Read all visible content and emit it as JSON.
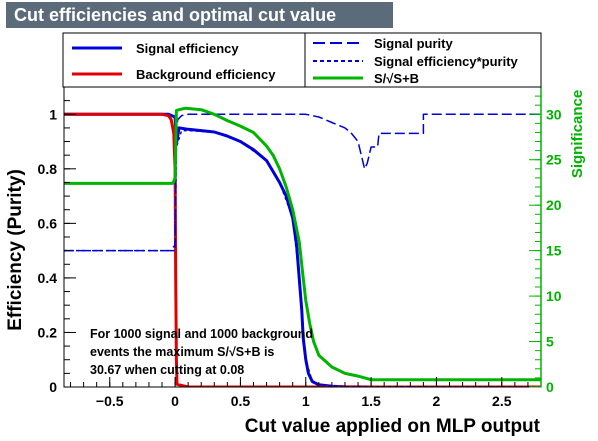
{
  "title": "Cut efficiencies and optimal cut value",
  "chart_data": {
    "type": "line",
    "xlabel": "Cut value applied on MLP output",
    "ylabel": "Efficiency (Purity)",
    "y2label": "Significance",
    "xlim": [
      -0.85,
      2.8
    ],
    "ylim": [
      0,
      1.1
    ],
    "y2lim": [
      0,
      33
    ],
    "xticks": [
      "−0.5",
      "0",
      "0.5",
      "1",
      "1.5",
      "2",
      "2.5"
    ],
    "xtick_values": [
      -0.5,
      0,
      0.5,
      1,
      1.5,
      2,
      2.5
    ],
    "yticks": [
      "0",
      "0.2",
      "0.4",
      "0.6",
      "0.8",
      "1"
    ],
    "ytick_values": [
      0,
      0.2,
      0.4,
      0.6,
      0.8,
      1
    ],
    "y2ticks": [
      "0",
      "5",
      "10",
      "15",
      "20",
      "25",
      "30"
    ],
    "y2tick_values": [
      0,
      5,
      10,
      15,
      20,
      25,
      30
    ],
    "legend": {
      "signal_eff": "Signal efficiency",
      "background_eff": "Background efficiency",
      "signal_purity": "Signal purity",
      "eff_purity": "Signal efficiency*purity",
      "significance": "S/√S+B"
    },
    "annotation": {
      "line1": "For 1000 signal and 1000 background",
      "line2": "events the maximum S/√S+B is",
      "line3": "30.67 when cutting at  0.08"
    },
    "colors": {
      "signal": "#0000d8",
      "background": "#e00000",
      "significance": "#00b400",
      "title_bg": "#5c6b7a"
    },
    "series": [
      {
        "name": "Signal efficiency",
        "axis": "left",
        "x": [
          -0.85,
          -0.05,
          0.0,
          0.01,
          0.03,
          0.1,
          0.2,
          0.3,
          0.4,
          0.5,
          0.6,
          0.7,
          0.8,
          0.85,
          0.9,
          0.93,
          0.95,
          0.97,
          0.98,
          1.0,
          1.02,
          1.05,
          1.1,
          1.2,
          1.3,
          1.5,
          2.8
        ],
        "y": [
          1.0,
          1.0,
          0.99,
          0.89,
          0.95,
          0.945,
          0.94,
          0.935,
          0.92,
          0.9,
          0.87,
          0.83,
          0.75,
          0.7,
          0.62,
          0.52,
          0.4,
          0.28,
          0.18,
          0.1,
          0.05,
          0.02,
          0.008,
          0.003,
          0.001,
          0.0,
          0.0
        ]
      },
      {
        "name": "Background efficiency",
        "axis": "left",
        "x": [
          -0.85,
          -0.1,
          -0.05,
          -0.03,
          -0.01,
          0.0,
          0.005,
          0.01,
          0.015,
          0.1,
          2.8
        ],
        "y": [
          1.0,
          1.0,
          0.995,
          0.98,
          0.93,
          0.8,
          0.4,
          0.1,
          0.01,
          0.0,
          0.0
        ]
      },
      {
        "name": "Signal purity",
        "axis": "left",
        "x": [
          -0.85,
          -0.02,
          -0.02,
          0.0,
          0.01,
          0.02,
          0.05,
          0.1,
          0.2,
          1.0,
          1.1,
          1.15,
          1.2,
          1.3,
          1.35,
          1.4,
          1.45,
          1.47,
          1.5,
          1.55,
          1.56,
          1.9,
          1.9,
          2.8
        ],
        "y": [
          0.5,
          0.5,
          0.51,
          0.52,
          0.93,
          0.98,
          0.995,
          1.0,
          1.0,
          1.0,
          0.99,
          0.98,
          0.97,
          0.95,
          0.93,
          0.9,
          0.8,
          0.82,
          0.88,
          0.88,
          0.93,
          0.93,
          1.0,
          1.0
        ]
      },
      {
        "name": "Signal efficiency*purity",
        "axis": "left",
        "x": [
          -0.85,
          -0.05,
          0.0,
          0.01,
          0.05,
          0.1,
          0.3,
          0.5,
          0.7,
          0.8,
          0.9,
          0.95,
          1.0,
          1.05,
          1.1,
          1.3,
          2.8
        ],
        "y": [
          0.5,
          0.5,
          0.5,
          0.88,
          0.94,
          0.94,
          0.935,
          0.9,
          0.83,
          0.75,
          0.62,
          0.4,
          0.1,
          0.02,
          0.008,
          0.001,
          0.0
        ]
      },
      {
        "name": "S/√S+B",
        "axis": "right",
        "x": [
          -0.85,
          -0.02,
          -0.01,
          0.0,
          0.01,
          0.03,
          0.08,
          0.2,
          0.3,
          0.4,
          0.5,
          0.6,
          0.7,
          0.75,
          0.8,
          0.85,
          0.9,
          0.95,
          0.98,
          1.0,
          1.03,
          1.06,
          1.1,
          1.2,
          1.3,
          1.4,
          1.5,
          2.8
        ],
        "y": [
          22.4,
          22.4,
          22.6,
          23.0,
          30.4,
          30.5,
          30.67,
          30.5,
          30.0,
          29.3,
          28.7,
          28.0,
          26.5,
          25.5,
          24.0,
          22.0,
          19.5,
          16.0,
          12.0,
          9.5,
          7.0,
          5.0,
          3.5,
          2.2,
          1.5,
          1.2,
          0.8,
          0.8
        ]
      }
    ]
  }
}
